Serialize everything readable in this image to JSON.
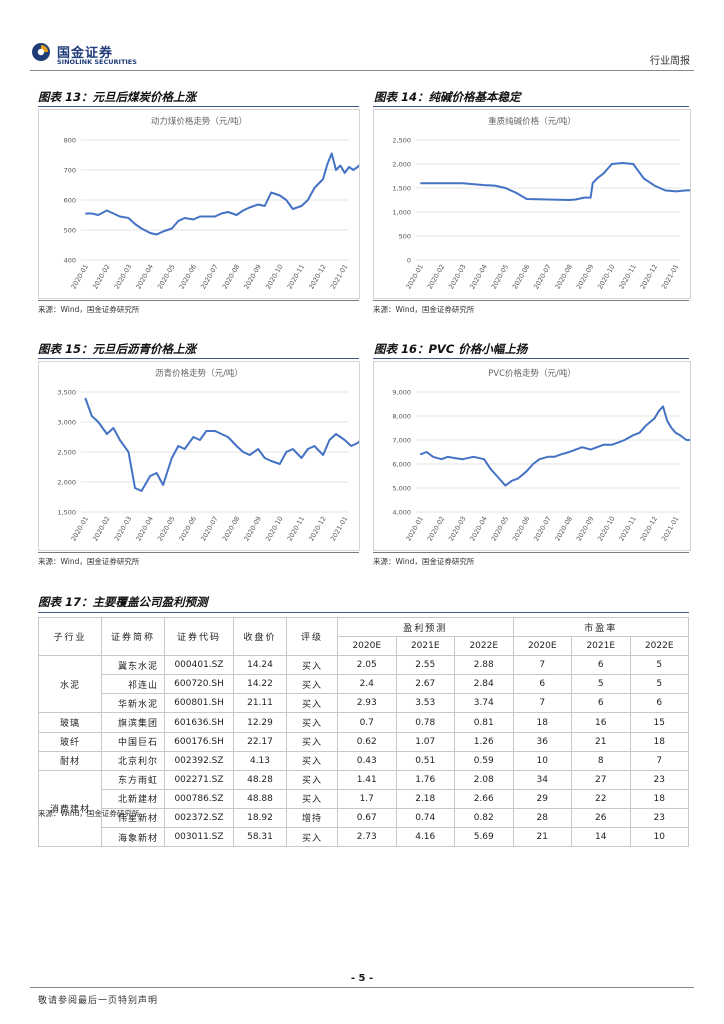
{
  "header": {
    "logo_cn": "国金证券",
    "logo_en": "SINOLINK SECURITIES",
    "report_type": "行业周报"
  },
  "figures": [
    {
      "title": "图表 13：元旦后煤炭价格上涨",
      "source": "来源：Wind，国金证券研究所",
      "chart_data": {
        "type": "line",
        "title": "动力煤价格走势（元/吨）",
        "xlabel": "",
        "ylabel": "",
        "ylim": [
          400,
          800
        ],
        "yticks": [
          "400",
          "500",
          "600",
          "700",
          "800"
        ],
        "categories": [
          "2020-01",
          "2020-02",
          "2020-03",
          "2020-04",
          "2020-05",
          "2020-06",
          "2020-07",
          "2020-08",
          "2020-09",
          "2020-10",
          "2020-11",
          "2020-12",
          "2021-01"
        ],
        "x": [
          0,
          0.3,
          0.6,
          1,
          1.3,
          1.6,
          2,
          2.3,
          2.6,
          3,
          3.3,
          3.6,
          4,
          4.3,
          4.6,
          5,
          5.3,
          5.6,
          6,
          6.3,
          6.6,
          7,
          7.3,
          7.6,
          8,
          8.3,
          8.6,
          9,
          9.3,
          9.6,
          10,
          10.3,
          10.6,
          11,
          11.2,
          11.4,
          11.6,
          11.8,
          12,
          12.2,
          12.4,
          12.6,
          12.8,
          12.9
        ],
        "values": [
          555,
          555,
          550,
          565,
          555,
          545,
          540,
          520,
          505,
          490,
          485,
          495,
          505,
          530,
          540,
          535,
          545,
          545,
          545,
          555,
          560,
          550,
          565,
          575,
          585,
          580,
          625,
          615,
          600,
          570,
          580,
          600,
          640,
          670,
          720,
          755,
          700,
          715,
          690,
          710,
          700,
          710,
          725,
          720
        ]
      }
    },
    {
      "title": "图表 14：纯碱价格基本稳定",
      "source": "来源：Wind，国金证券研究所",
      "chart_data": {
        "type": "line",
        "title": "重质纯碱价格（元/吨）",
        "xlabel": "",
        "ylabel": "",
        "ylim": [
          0,
          2500
        ],
        "yticks": [
          "0",
          "500",
          "1,000",
          "1,500",
          "2,000",
          "2,500"
        ],
        "categories": [
          "2020-01",
          "2020-02",
          "2020-03",
          "2020-04",
          "2020-05",
          "2020-06",
          "2020-07",
          "2020-08",
          "2020-09",
          "2020-10",
          "2020-11",
          "2020-12",
          "2021-01"
        ],
        "x": [
          0,
          1,
          2,
          3,
          3.5,
          4,
          4.5,
          5,
          6,
          7,
          7.3,
          7.7,
          8,
          8.1,
          8.3,
          8.6,
          9,
          9.5,
          10,
          10.5,
          11,
          11.5,
          12,
          12.5,
          12.9
        ],
        "values": [
          1600,
          1600,
          1600,
          1560,
          1550,
          1500,
          1400,
          1270,
          1260,
          1250,
          1260,
          1300,
          1300,
          1600,
          1700,
          1800,
          2000,
          2020,
          2000,
          1700,
          1550,
          1450,
          1430,
          1450,
          1450
        ]
      }
    },
    {
      "title": "图表 15：元旦后沥青价格上涨",
      "source": "来源：Wind，国金证券研究所",
      "chart_data": {
        "type": "line",
        "title": "沥青价格走势（元/吨）",
        "xlabel": "",
        "ylabel": "",
        "ylim": [
          1500,
          3500
        ],
        "yticks": [
          "1,500",
          "2,000",
          "2,500",
          "3,000",
          "3,500"
        ],
        "categories": [
          "2020-01",
          "2020-02",
          "2020-03",
          "2020-04",
          "2020-05",
          "2020-06",
          "2020-07",
          "2020-08",
          "2020-09",
          "2020-10",
          "2020-11",
          "2020-12",
          "2021-01"
        ],
        "x": [
          0,
          0.3,
          0.6,
          1,
          1.3,
          1.6,
          2,
          2.3,
          2.6,
          3,
          3.3,
          3.6,
          4,
          4.3,
          4.6,
          5,
          5.3,
          5.6,
          6,
          6.3,
          6.6,
          7,
          7.3,
          7.6,
          8,
          8.3,
          8.6,
          9,
          9.3,
          9.6,
          10,
          10.3,
          10.6,
          11,
          11.3,
          11.6,
          12,
          12.3,
          12.6,
          12.9
        ],
        "values": [
          3400,
          3100,
          3000,
          2800,
          2900,
          2700,
          2500,
          1900,
          1850,
          2100,
          2150,
          1950,
          2400,
          2600,
          2550,
          2750,
          2700,
          2850,
          2850,
          2800,
          2750,
          2600,
          2500,
          2450,
          2550,
          2400,
          2350,
          2300,
          2500,
          2550,
          2400,
          2550,
          2600,
          2450,
          2700,
          2800,
          2700,
          2600,
          2650,
          2750
        ]
      }
    },
    {
      "title": "图表 16：PVC 价格小幅上扬",
      "source": "来源：Wind，国金证券研究所",
      "chart_data": {
        "type": "line",
        "title": "PVC价格走势（元/吨）",
        "xlabel": "",
        "ylabel": "",
        "ylim": [
          4000,
          9000
        ],
        "yticks": [
          "4,000",
          "5,000",
          "6,000",
          "7,000",
          "8,000",
          "9,000"
        ],
        "categories": [
          "2020-01",
          "2020-02",
          "2020-03",
          "2020-04",
          "2020-05",
          "2020-06",
          "2020-07",
          "2020-08",
          "2020-09",
          "2020-10",
          "2020-11",
          "2020-12",
          "2021-01"
        ],
        "x": [
          0,
          0.3,
          0.6,
          1,
          1.3,
          1.6,
          2,
          2.5,
          3,
          3.3,
          3.6,
          4,
          4.3,
          4.6,
          5,
          5.3,
          5.6,
          6,
          6.3,
          6.6,
          7,
          7.3,
          7.6,
          8,
          8.3,
          8.6,
          9,
          9.3,
          9.6,
          10,
          10.3,
          10.6,
          11,
          11.2,
          11.4,
          11.6,
          11.8,
          12,
          12.2,
          12.5,
          12.9
        ],
        "values": [
          6400,
          6500,
          6300,
          6200,
          6300,
          6250,
          6200,
          6300,
          6200,
          5800,
          5500,
          5100,
          5300,
          5400,
          5700,
          6000,
          6200,
          6300,
          6300,
          6400,
          6500,
          6600,
          6700,
          6600,
          6700,
          6800,
          6800,
          6900,
          7000,
          7200,
          7300,
          7600,
          7900,
          8200,
          8400,
          7800,
          7500,
          7300,
          7200,
          7000,
          7000
        ]
      }
    }
  ],
  "table": {
    "title": "图表 17：主要覆盖公司盈利预测",
    "source": "来源：Wind，国金证券研究所",
    "headers": {
      "sub_industry": "子行业",
      "short_name": "证券简称",
      "code": "证券代码",
      "close": "收盘价",
      "rating": "评级",
      "profit_forecast": "盈利预测",
      "pe": "市盈率",
      "years": [
        "2020E",
        "2021E",
        "2022E"
      ]
    },
    "groups": [
      {
        "name": "水泥",
        "rows": [
          {
            "name": "冀东水泥",
            "code": "000401.SZ",
            "close": "14.24",
            "rating": "买入",
            "eps": [
              "2.05",
              "2.55",
              "2.88"
            ],
            "pe": [
              "7",
              "6",
              "5"
            ]
          },
          {
            "name": "祁连山",
            "code": "600720.SH",
            "close": "14.22",
            "rating": "买入",
            "eps": [
              "2.4",
              "2.67",
              "2.84"
            ],
            "pe": [
              "6",
              "5",
              "5"
            ]
          },
          {
            "name": "华新水泥",
            "code": "600801.SH",
            "close": "21.11",
            "rating": "买入",
            "eps": [
              "2.93",
              "3.53",
              "3.74"
            ],
            "pe": [
              "7",
              "6",
              "6"
            ]
          }
        ]
      },
      {
        "name": "玻璃",
        "rows": [
          {
            "name": "旗滨集团",
            "code": "601636.SH",
            "close": "12.29",
            "rating": "买入",
            "eps": [
              "0.7",
              "0.78",
              "0.81"
            ],
            "pe": [
              "18",
              "16",
              "15"
            ]
          }
        ]
      },
      {
        "name": "玻纤",
        "rows": [
          {
            "name": "中国巨石",
            "code": "600176.SH",
            "close": "22.17",
            "rating": "买入",
            "eps": [
              "0.62",
              "1.07",
              "1.26"
            ],
            "pe": [
              "36",
              "21",
              "18"
            ]
          }
        ]
      },
      {
        "name": "耐材",
        "rows": [
          {
            "name": "北京利尔",
            "code": "002392.SZ",
            "close": "4.13",
            "rating": "买入",
            "eps": [
              "0.43",
              "0.51",
              "0.59"
            ],
            "pe": [
              "10",
              "8",
              "7"
            ]
          }
        ]
      },
      {
        "name": "消费建材",
        "rows": [
          {
            "name": "东方雨虹",
            "code": "002271.SZ",
            "close": "48.28",
            "rating": "买入",
            "eps": [
              "1.41",
              "1.76",
              "2.08"
            ],
            "pe": [
              "34",
              "27",
              "23"
            ]
          },
          {
            "name": "北新建材",
            "code": "000786.SZ",
            "close": "48.88",
            "rating": "买入",
            "eps": [
              "1.7",
              "2.18",
              "2.66"
            ],
            "pe": [
              "29",
              "22",
              "18"
            ]
          },
          {
            "name": "伟星新材",
            "code": "002372.SZ",
            "close": "18.92",
            "rating": "增持",
            "eps": [
              "0.67",
              "0.74",
              "0.82"
            ],
            "pe": [
              "28",
              "26",
              "23"
            ]
          },
          {
            "name": "海象新材",
            "code": "003011.SZ",
            "close": "58.31",
            "rating": "买入",
            "eps": [
              "2.73",
              "4.16",
              "5.69"
            ],
            "pe": [
              "21",
              "14",
              "10"
            ]
          }
        ]
      }
    ]
  },
  "footer": {
    "page": "- 5 -",
    "note": "敬请参阅最后一页特别声明"
  },
  "colors": {
    "line": "#4472c4",
    "brand": "#1f3b78",
    "accent": "#3d5a8a"
  }
}
